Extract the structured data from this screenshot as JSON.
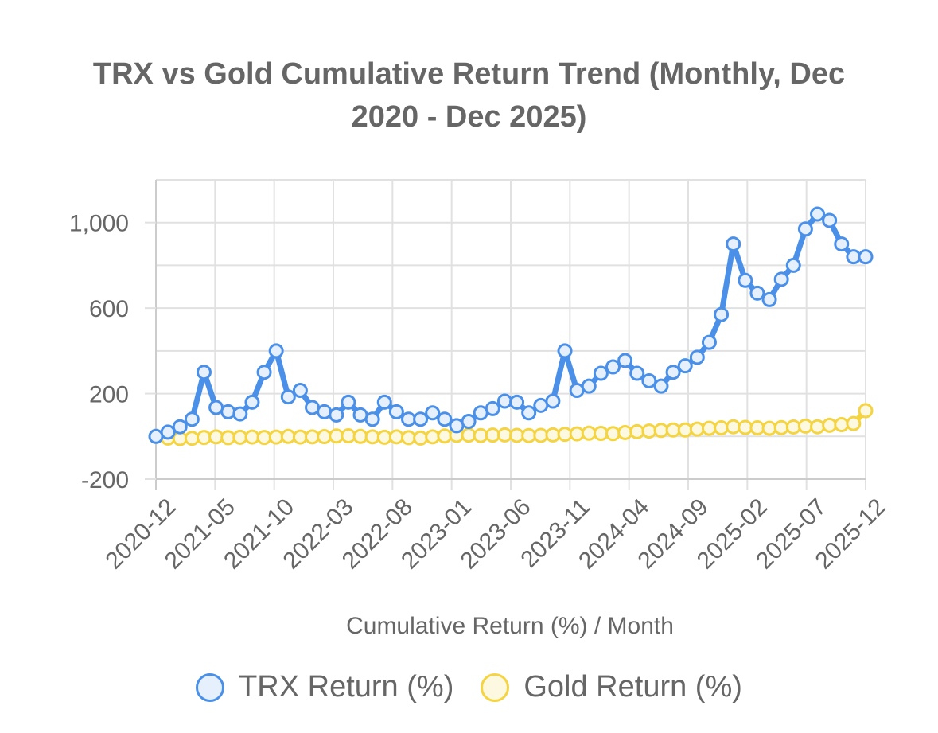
{
  "chart_data": {
    "type": "line",
    "title_line1": "TRX vs Gold Cumulative Return Trend (Monthly, Dec",
    "title_line2": "2020 - Dec 2025)",
    "xlabel": "Cumulative Return (%) / Month",
    "ylabel": "",
    "ylim": [
      -200,
      1200
    ],
    "yticks": [
      -200,
      200,
      600,
      1000
    ],
    "ytick_labels": [
      "-200",
      "200",
      "600",
      "1,000"
    ],
    "xtick_labels": [
      "2020-12",
      "2021-05",
      "2021-10",
      "2022-03",
      "2022-08",
      "2023-01",
      "2023-06",
      "2023-11",
      "2024-04",
      "2024-09",
      "2025-02",
      "2025-07",
      "2025-12"
    ],
    "grid": true,
    "legend_position": "bottom",
    "series": [
      {
        "name": "TRX Return (%)",
        "color": "#4a90e8",
        "fill": "#e6f0fc",
        "values": [
          0,
          20,
          45,
          80,
          300,
          135,
          115,
          105,
          160,
          300,
          400,
          185,
          215,
          135,
          115,
          100,
          160,
          100,
          80,
          160,
          115,
          80,
          80,
          110,
          80,
          50,
          70,
          110,
          130,
          165,
          160,
          110,
          145,
          165,
          400,
          215,
          235,
          295,
          325,
          355,
          295,
          260,
          235,
          300,
          330,
          370,
          440,
          570,
          900,
          730,
          670,
          640,
          735,
          800,
          970,
          1040,
          1010,
          900,
          840,
          840
        ]
      },
      {
        "name": "Gold Return (%)",
        "color": "#f5d442",
        "fill": "#fdf8e0",
        "values": [
          0,
          -8,
          -10,
          -9,
          -5,
          -2,
          -6,
          -4,
          -3,
          -5,
          -3,
          0,
          -3,
          -2,
          -1,
          2,
          3,
          0,
          -2,
          -4,
          -2,
          -6,
          -8,
          -2,
          2,
          5,
          6,
          4,
          6,
          7,
          5,
          4,
          5,
          7,
          10,
          12,
          15,
          14,
          13,
          18,
          22,
          25,
          28,
          30,
          30,
          34,
          38,
          40,
          45,
          42,
          40,
          38,
          41,
          44,
          48,
          45,
          52,
          55,
          60,
          120
        ]
      }
    ]
  }
}
